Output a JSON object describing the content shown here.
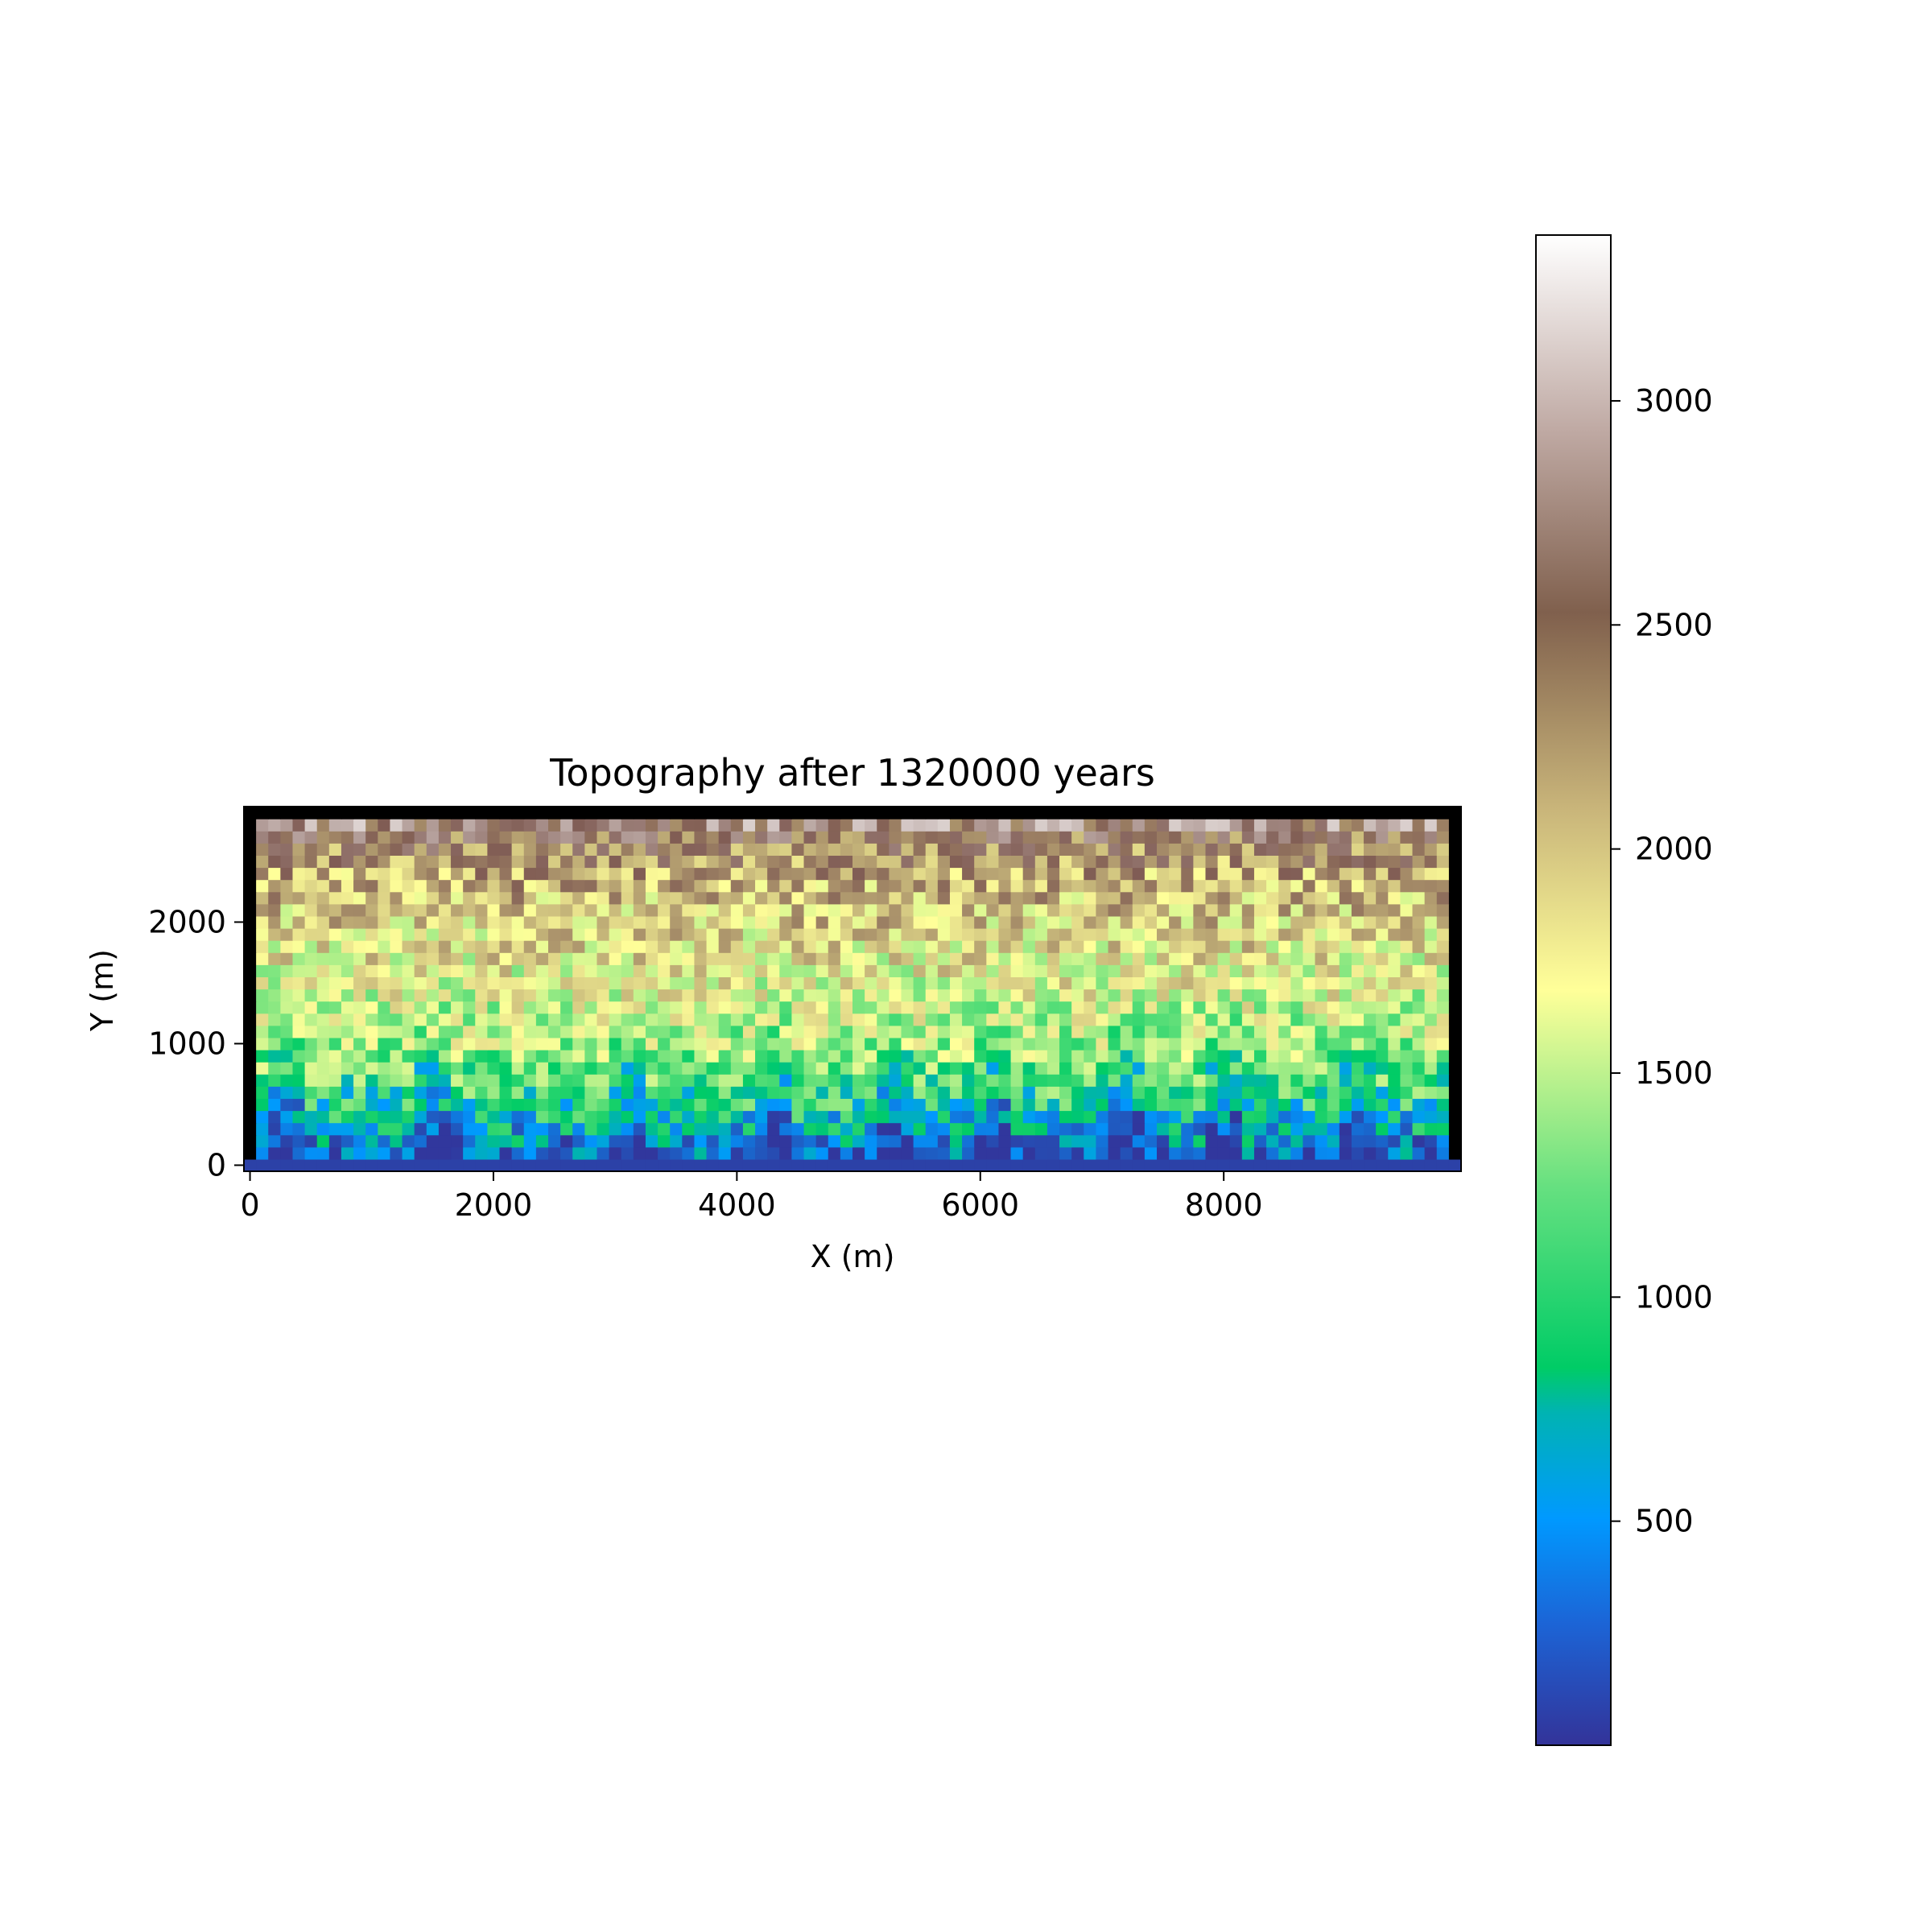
{
  "chart_data": {
    "type": "heatmap",
    "title": "Topography after 1320000 years",
    "xlabel": "X (m)",
    "ylabel": "Y (m)",
    "xlim": [
      -50,
      9950
    ],
    "ylim": [
      -50,
      2950
    ],
    "xticks": [
      0,
      2000,
      4000,
      6000,
      8000
    ],
    "xtick_labels": [
      "0",
      "2000",
      "4000",
      "6000",
      "8000"
    ],
    "yticks": [
      0,
      1000,
      2000
    ],
    "ytick_labels": [
      "0",
      "1000",
      "2000"
    ],
    "grid": false,
    "colormap": "terrain",
    "colorbar": {
      "range": [
        0,
        3370
      ],
      "ticks": [
        500,
        1000,
        1500,
        2000,
        2500,
        3000
      ],
      "tick_labels": [
        "500",
        "1000",
        "1500",
        "2000",
        "2500",
        "3000"
      ]
    },
    "grid_shape": {
      "rows": 30,
      "cols": 100,
      "cell_size_m": 100
    },
    "boundary_value_color": "#000000",
    "elevation_profile_by_row_from_bottom": [
      0,
      300,
      450,
      600,
      750,
      900,
      1000,
      1100,
      1200,
      1300,
      1400,
      1450,
      1500,
      1550,
      1600,
      1650,
      1700,
      1750,
      1800,
      1850,
      1900,
      1950,
      2000,
      2050,
      2100,
      2200,
      2300,
      2450,
      2700,
      3000
    ]
  }
}
